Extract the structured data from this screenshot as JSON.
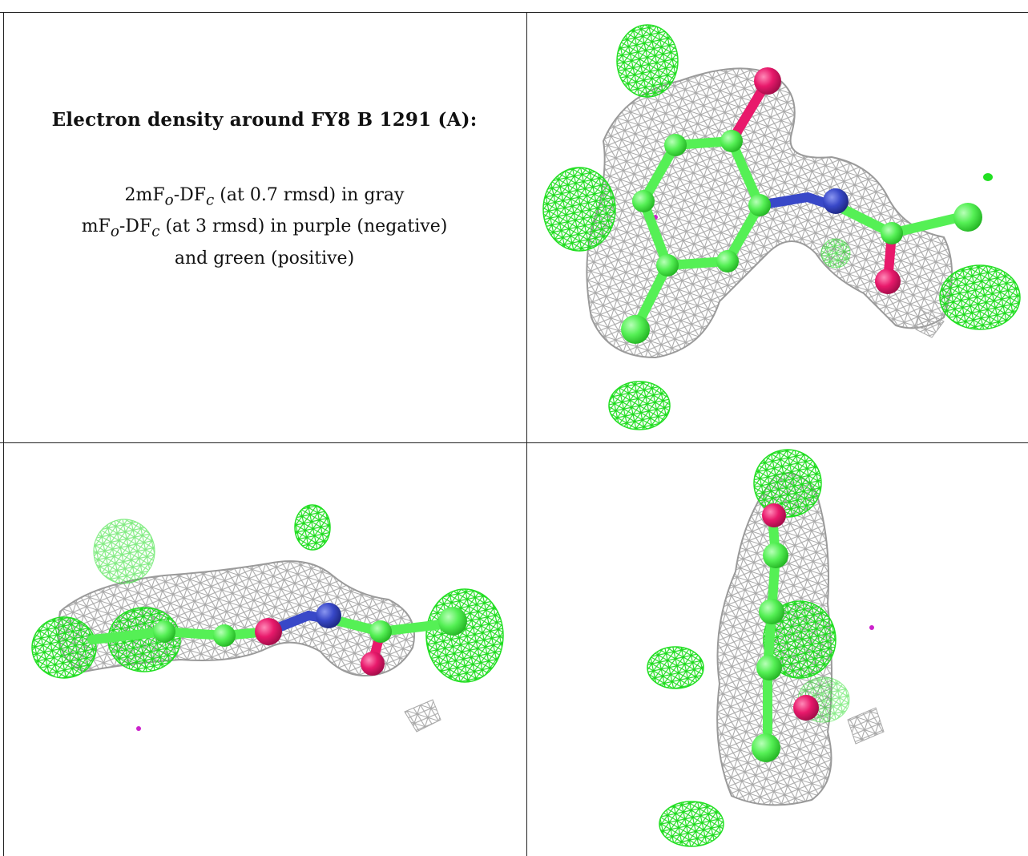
{
  "figure": {
    "title": "Electron density around FY8 B 1291 (A):",
    "legend": {
      "line1": {
        "prefix": "2mF",
        "sub1": "o",
        "mid": "-DF",
        "sub2": "c",
        "rest": " (at 0.7 rmsd) in gray"
      },
      "line2": {
        "prefix": "mF",
        "sub1": "o",
        "mid": "-DF",
        "sub2": "c",
        "rest": " (at 3 rmsd) in purple (negative)"
      },
      "line3": "and green (positive)"
    }
  },
  "panels": {
    "top_right": {
      "view": "ligand-density-view-1"
    },
    "bottom_left": {
      "view": "ligand-density-view-2"
    },
    "bottom_right": {
      "view": "ligand-density-view-3"
    }
  },
  "colors": {
    "mesh_gray": "#a9a9a9",
    "mesh_green": "#22e022",
    "carbon": "#55f055",
    "oxygen": "#e8196b",
    "nitrogen": "#3848c8",
    "negative": "#cc22cc",
    "rule": "#222222"
  }
}
